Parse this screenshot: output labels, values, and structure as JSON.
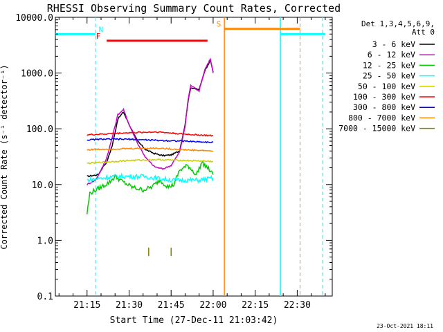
{
  "chart_data": {
    "type": "line",
    "title": "RHESSI Observing Summary Count Rates, Corrected",
    "xlabel": "Start Time (27-Dec-11 21:03:42)",
    "ylabel": "Corrected Count Rate (s⁻¹ detector⁻¹)",
    "y_scale": "log",
    "ylim": [
      0.1,
      10000
    ],
    "xlim": [
      "21:03:42",
      "22:42:30"
    ],
    "x_ticks": [
      "21:15",
      "21:30",
      "21:45",
      "22:00",
      "22:15",
      "22:30"
    ],
    "y_ticks": [
      "0.1",
      "1.0",
      "10.0",
      "100.0",
      "1000.0",
      "10000.0"
    ],
    "footer": "23-Oct-2021 18:11",
    "legend_header": [
      "Det 1,3,4,5,6,9,",
      "Att 0"
    ],
    "legend_position": "right",
    "series": [
      {
        "name": "3 - 6 keV",
        "color": "#000000",
        "x": [
          "21:15",
          "21:19",
          "21:21",
          "21:22",
          "21:24",
          "21:26",
          "21:28",
          "21:30",
          "21:33",
          "21:36",
          "21:39",
          "21:42",
          "21:45",
          "21:48",
          "21:50",
          "21:51",
          "21:52",
          "21:55",
          "21:57",
          "21:59",
          "22:00"
        ],
        "y": [
          14,
          15,
          22,
          25,
          50,
          150,
          200,
          120,
          60,
          42,
          36,
          33,
          34,
          40,
          120,
          300,
          550,
          500,
          1100,
          1700,
          1050
        ]
      },
      {
        "name": "6 - 12 keV",
        "color": "#cc00cc",
        "x": [
          "21:15",
          "21:18",
          "21:20",
          "21:22",
          "21:24",
          "21:26",
          "21:28",
          "21:30",
          "21:33",
          "21:36",
          "21:39",
          "21:42",
          "21:45",
          "21:48",
          "21:50",
          "21:51",
          "21:52",
          "21:55",
          "21:57",
          "21:59",
          "22:00"
        ],
        "y": [
          10,
          12,
          18,
          30,
          70,
          180,
          220,
          120,
          55,
          30,
          21,
          19,
          22,
          38,
          110,
          320,
          600,
          480,
          1150,
          1800,
          1000
        ]
      },
      {
        "name": "12 - 25 keV",
        "color": "#00cc00",
        "x": [
          "21:15",
          "21:16",
          "21:20",
          "21:23",
          "21:25",
          "21:28",
          "21:31",
          "21:35",
          "21:38",
          "21:41",
          "21:44",
          "21:46",
          "21:48",
          "21:51",
          "21:54",
          "21:56",
          "21:58",
          "22:00"
        ],
        "y": [
          3,
          7,
          9,
          11,
          14,
          11,
          9,
          8,
          9,
          12,
          9,
          10,
          18,
          22,
          15,
          25,
          20,
          15
        ]
      },
      {
        "name": "25 - 50 keV",
        "color": "#00ffff",
        "x": [
          "21:15",
          "21:20",
          "21:25",
          "21:30",
          "21:35",
          "21:40",
          "21:45",
          "21:50",
          "21:55",
          "22:00"
        ],
        "y": [
          12,
          13,
          14,
          14,
          14,
          13,
          12,
          12,
          12,
          13
        ]
      },
      {
        "name": "50 - 100 keV",
        "color": "#cccc00",
        "x": [
          "21:15",
          "21:20",
          "21:30",
          "21:40",
          "21:50",
          "22:00"
        ],
        "y": [
          24,
          25,
          27,
          28,
          27,
          26
        ]
      },
      {
        "name": "100 - 300 keV",
        "color": "#ff0000",
        "x": [
          "21:15",
          "21:20",
          "21:30",
          "21:40",
          "21:50",
          "22:00"
        ],
        "y": [
          78,
          80,
          85,
          88,
          80,
          75
        ]
      },
      {
        "name": "300 - 800 keV",
        "color": "#0000ff",
        "x": [
          "21:15",
          "21:20",
          "21:30",
          "21:40",
          "21:50",
          "22:00"
        ],
        "y": [
          63,
          65,
          65,
          62,
          60,
          57
        ]
      },
      {
        "name": "800 - 7000 keV",
        "color": "#ff8800",
        "x": [
          "21:15",
          "21:20",
          "21:30",
          "21:40",
          "21:50",
          "22:00"
        ],
        "y": [
          42,
          43,
          44,
          45,
          42,
          40
        ]
      },
      {
        "name": "7000 - 15000 keV",
        "color": "#808000",
        "x": [],
        "y": []
      }
    ],
    "flags": [
      {
        "label": "N",
        "color": "#00ffff",
        "y": 5000,
        "segments": [
          [
            "21:03:42",
            "21:18"
          ],
          [
            "22:24",
            "22:40"
          ]
        ],
        "label_at": "21:18"
      },
      {
        "label": "F",
        "color": "#ff0000",
        "y": 3800,
        "segments": [
          [
            "21:22",
            "21:58"
          ]
        ],
        "label_at": "21:20"
      },
      {
        "label": "S",
        "color": "#ff8800",
        "y": 6200,
        "segments": [
          [
            "22:04",
            "22:31"
          ]
        ],
        "label_at": "22:03"
      }
    ],
    "event_lines": [
      {
        "color": "#00ffff",
        "style": "dashed",
        "x": "21:18"
      },
      {
        "color": "#ff8800",
        "style": "solid",
        "x": "22:04"
      },
      {
        "color": "#00ffff",
        "style": "solid",
        "x": "22:24"
      },
      {
        "color": "#ff8800",
        "style": "dashed",
        "x": "22:31"
      },
      {
        "color": "#00ffff",
        "style": "dashed",
        "x": "22:39"
      }
    ],
    "markers": [
      {
        "color": "#808000",
        "x": "21:37",
        "y": 0.62
      },
      {
        "color": "#808000",
        "x": "21:45",
        "y": 0.62
      }
    ]
  }
}
